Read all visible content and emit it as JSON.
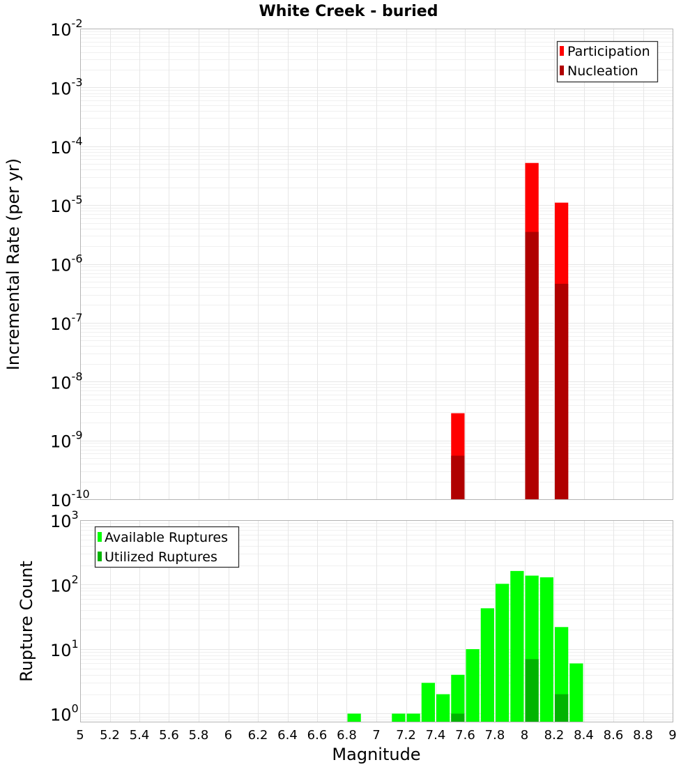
{
  "chart_data": [
    {
      "id": "rate",
      "type": "bar",
      "title": "White Creek - buried",
      "xlabel": "",
      "ylabel": "Incremental Rate (per yr)",
      "yscale": "log",
      "ylim": [
        1e-10,
        0.01
      ],
      "xlim": [
        5,
        9
      ],
      "ytick_exponents": [
        "-10",
        "-9",
        "-8",
        "-7",
        "-6",
        "-5",
        "-4",
        "-3",
        "-2"
      ],
      "legend": {
        "position": "top-right",
        "entries": [
          "Participation",
          "Nucleation"
        ]
      },
      "series": [
        {
          "name": "Participation",
          "color": "#ff0000",
          "x": [
            7.55,
            8.05,
            8.25
          ],
          "values": [
            2.9e-09,
            5.2e-05,
            1.1e-05
          ]
        },
        {
          "name": "Nucleation",
          "color": "#b00000",
          "x": [
            7.55,
            8.05,
            8.25
          ],
          "values": [
            5.5e-10,
            3.5e-06,
            4.6e-07
          ]
        }
      ]
    },
    {
      "id": "count",
      "type": "bar",
      "title": "",
      "xlabel": "Magnitude",
      "ylabel": "Rupture Count",
      "yscale": "log",
      "ylim": [
        0.75,
        1000
      ],
      "xlim": [
        5,
        9
      ],
      "ytick_exponents": [
        "0",
        "1",
        "2",
        "3"
      ],
      "xticks": [
        "5",
        "5.2",
        "5.4",
        "5.6",
        "5.8",
        "6",
        "6.2",
        "6.4",
        "6.6",
        "6.8",
        "7",
        "7.2",
        "7.4",
        "7.6",
        "7.8",
        "8",
        "8.2",
        "8.4",
        "8.6",
        "8.8",
        "9"
      ],
      "legend": {
        "position": "top-left",
        "entries": [
          "Available Ruptures",
          "Utilized Ruptures"
        ]
      },
      "series": [
        {
          "name": "Available Ruptures",
          "color": "#00ff00",
          "x": [
            6.85,
            7.15,
            7.25,
            7.35,
            7.45,
            7.55,
            7.65,
            7.75,
            7.85,
            7.95,
            8.05,
            8.15,
            8.25,
            8.35
          ],
          "values": [
            1,
            1,
            1,
            3,
            2,
            4,
            10,
            43,
            103,
            163,
            138,
            130,
            22,
            6
          ]
        },
        {
          "name": "Utilized Ruptures",
          "color": "#00b400",
          "x": [
            7.55,
            8.05,
            8.25
          ],
          "values": [
            1,
            7,
            2
          ]
        }
      ]
    }
  ]
}
